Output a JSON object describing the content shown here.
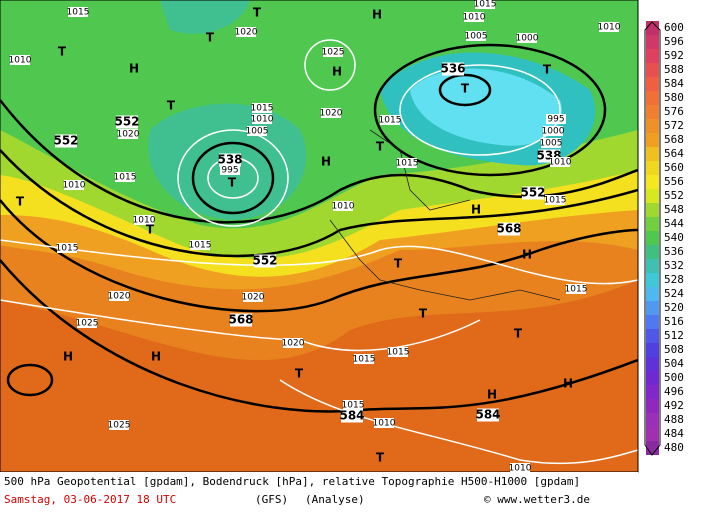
{
  "colorbar": {
    "labels": [
      "600",
      "596",
      "592",
      "588",
      "584",
      "580",
      "576",
      "572",
      "568",
      "564",
      "560",
      "556",
      "552",
      "548",
      "544",
      "540",
      "536",
      "532",
      "528",
      "524",
      "520",
      "516",
      "512",
      "508",
      "504",
      "500",
      "496",
      "492",
      "488",
      "484",
      "480"
    ]
  },
  "map_labels": [
    "552",
    "552",
    "538",
    "552",
    "568",
    "584",
    "584",
    "568",
    "552",
    "536",
    "538",
    "1015",
    "1020",
    "1010",
    "1020",
    "1015",
    "1010",
    "1010",
    "1015",
    "1015",
    "1020",
    "1025",
    "1020",
    "1020",
    "1015",
    "1015",
    "1015",
    "1010",
    "1025",
    "1010",
    "1015",
    "1015",
    "1010",
    "1015",
    "1015",
    "1020",
    "1015",
    "1010",
    "1005",
    "995",
    "1025",
    "1010",
    "1015",
    "1005",
    "1000",
    "995",
    "1000",
    "1005",
    "1010",
    "1010",
    "T",
    "H",
    "T",
    "H",
    "T",
    "H",
    "T",
    "T",
    "T",
    "T",
    "H",
    "T",
    "T",
    "T",
    "H",
    "H",
    "T",
    "T",
    "T",
    "H",
    "H",
    "T",
    "H",
    "H",
    "T"
  ],
  "footer": {
    "line1": "500 hPa Geopotential [gpdam], Bodendruck [hPa], relative Topographie H500-H1000 [gpdam]",
    "date": "Samstag, 03-06-2017  18 UTC",
    "model": "(GFS)",
    "run": "(Analyse)",
    "credit": "© www.wetter3.de"
  }
}
